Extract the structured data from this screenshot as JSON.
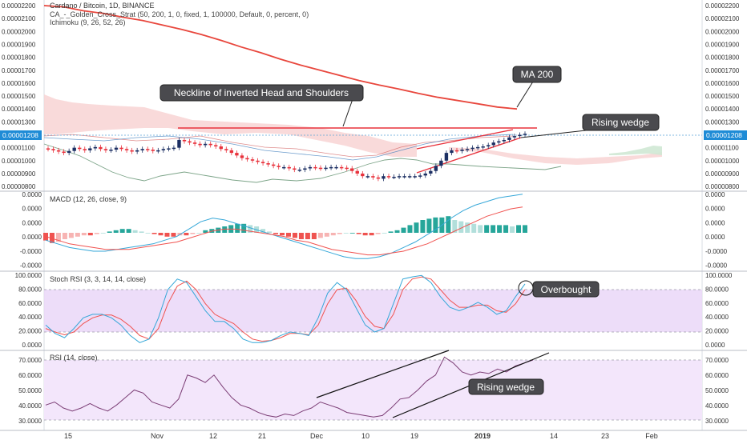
{
  "header": {
    "title": "Cardano / Bitcoin, 1D, BINANCE",
    "study1": "CA_-_Golden_Cross_Strat (50, 200, 1, 0, fixed, 1, 100000, Default, 0, percent, 0)",
    "study2": "Ichimoku (9, 26, 52, 26)"
  },
  "price_axis": {
    "ticks": [
      "0.00002200",
      "0.00002100",
      "0.00002000",
      "0.00001900",
      "0.00001800",
      "0.00001700",
      "0.00001600",
      "0.00001500",
      "0.00001400",
      "0.00001300",
      "0.00001100",
      "0.00001000",
      "0.00000900",
      "0.00000800"
    ],
    "current_price": "0.00001208"
  },
  "macd": {
    "title": "MACD (12, 26, close, 9)",
    "ticks": [
      "0.0000",
      "0.0000",
      "0.0000",
      "0.0000",
      "-0.0000",
      "-0.0000"
    ]
  },
  "stoch": {
    "title": "Stoch RSI (3, 3, 14, 14, close)",
    "ticks": [
      "100.0000",
      "80.0000",
      "60.0000",
      "40.0000",
      "20.0000",
      "0.0000"
    ]
  },
  "rsi": {
    "title": "RSI (14, close)",
    "ticks": [
      "70.0000",
      "60.0000",
      "50.0000",
      "40.0000",
      "30.0000"
    ]
  },
  "time_axis": {
    "labels": [
      "15",
      "Nov",
      "12",
      "21",
      "Dec",
      "10",
      "19",
      "2019",
      "14",
      "23",
      "Feb"
    ]
  },
  "annotations": {
    "neckline": "Neckline of inverted Head and Shoulders",
    "ma200": "MA 200",
    "rising_wedge_price": "Rising wedge",
    "overbought": "Overbought",
    "rising_wedge_rsi": "Rising wedge"
  },
  "colors": {
    "bull": "#1c2f63",
    "bear": "#e8323c",
    "ma200": "#e8463c",
    "trendline": "#e8323c",
    "stoch_k": "#35a7d8",
    "stoch_d": "#f0524f",
    "rsi_line": "#7b3d75",
    "band_fill": "#e9d4f7"
  },
  "chart_data": [
    {
      "type": "candlestick",
      "title": "Cardano / Bitcoin, 1D, BINANCE",
      "x_labels": [
        "15",
        "Nov",
        "12",
        "21",
        "Dec",
        "10",
        "19",
        "2019",
        "14",
        "23",
        "Feb"
      ],
      "close": [
        1090,
        1080,
        1070,
        1060,
        1075,
        1100,
        1090,
        1080,
        1095,
        1105,
        1090,
        1080,
        1085,
        1100,
        1090,
        1080,
        1070,
        1080,
        1090,
        1085,
        1075,
        1080,
        1090,
        1095,
        1100,
        1160,
        1150,
        1140,
        1130,
        1120,
        1130,
        1120,
        1110,
        1090,
        1080,
        1060,
        1040,
        1020,
        1010,
        1000,
        990,
        980,
        970,
        960,
        950,
        950,
        940,
        930,
        930,
        940,
        950,
        945,
        940,
        945,
        950,
        950,
        945,
        940,
        920,
        900,
        880,
        880,
        870,
        860,
        880,
        875,
        875,
        880,
        880,
        880,
        880,
        885,
        900,
        920,
        960,
        1000,
        1060,
        1080,
        1075,
        1085,
        1090,
        1100,
        1105,
        1110,
        1120,
        1140,
        1150,
        1160,
        1180,
        1190,
        1200,
        1208
      ],
      "ma200": [
        2200,
        2190,
        2160,
        2140,
        2110,
        2085,
        2050,
        2015,
        1975,
        1930,
        1880,
        1835,
        1785,
        1740,
        1700,
        1660,
        1620,
        1585,
        1555,
        1520,
        1490,
        1465,
        1440,
        1415,
        1400
      ],
      "ylim": [
        790,
        2240
      ],
      "notes": [
        "Neckline of inverted Head and Shoulders",
        "MA 200",
        "Rising wedge"
      ]
    },
    {
      "type": "bar",
      "title": "MACD (12, 26, close, 9)",
      "histogram": [
        -6,
        -8,
        -7,
        -5,
        -4,
        -3,
        -2,
        -2,
        -1,
        0,
        1,
        2,
        3,
        3,
        2,
        1,
        0,
        -1,
        -2,
        -3,
        -3,
        -2,
        -2,
        -1,
        0,
        2,
        3,
        4,
        5,
        6,
        7,
        7,
        6,
        5,
        3,
        1,
        -1,
        -2,
        -3,
        -4,
        -5,
        -5,
        -5,
        -4,
        -3,
        -2,
        -1,
        0,
        0,
        -1,
        -2,
        -2,
        -1,
        0,
        1,
        2,
        4,
        6,
        8,
        10,
        11,
        12,
        12,
        13,
        10,
        9,
        8,
        7,
        6,
        6,
        6,
        6,
        6,
        5,
        6,
        6
      ],
      "macd": [
        -4,
        -6,
        -8,
        -9,
        -10,
        -10,
        -9,
        -8,
        -7,
        -6,
        -4,
        -2,
        2,
        6,
        8,
        7,
        5,
        3,
        1,
        -1,
        -3,
        -5,
        -7,
        -9,
        -11,
        -13,
        -14,
        -14,
        -13,
        -11,
        -8,
        -5,
        -1,
        3,
        8,
        12,
        15,
        17,
        19,
        20,
        21
      ],
      "signal": [
        -2,
        -4,
        -6,
        -7,
        -8,
        -9,
        -9,
        -9,
        -8,
        -7,
        -6,
        -5,
        -3,
        -1,
        1,
        2,
        2,
        1,
        0,
        -1,
        -2,
        -4,
        -5,
        -7,
        -9,
        -10,
        -11,
        -12,
        -12,
        -11,
        -10,
        -8,
        -6,
        -3,
        0,
        3,
        6,
        9,
        11,
        13,
        14
      ]
    },
    {
      "type": "line",
      "title": "Stoch RSI (3, 3, 14, 14, close)",
      "ylim": [
        0,
        100
      ],
      "bands": [
        20,
        80
      ],
      "k": [
        30,
        18,
        12,
        25,
        40,
        45,
        45,
        40,
        30,
        15,
        5,
        10,
        40,
        80,
        95,
        90,
        70,
        50,
        35,
        35,
        25,
        10,
        5,
        5,
        8,
        15,
        20,
        18,
        15,
        40,
        75,
        90,
        80,
        55,
        30,
        20,
        25,
        60,
        95,
        98,
        100,
        90,
        70,
        55,
        50,
        55,
        62,
        55,
        45,
        50,
        70,
        88
      ],
      "d": [
        25,
        20,
        16,
        20,
        32,
        40,
        44,
        44,
        38,
        28,
        15,
        10,
        25,
        60,
        85,
        92,
        80,
        60,
        45,
        38,
        32,
        20,
        10,
        7,
        8,
        12,
        18,
        18,
        16,
        30,
        60,
        80,
        82,
        65,
        42,
        28,
        25,
        45,
        80,
        95,
        98,
        95,
        80,
        65,
        55,
        55,
        58,
        58,
        50,
        48,
        60,
        80
      ]
    },
    {
      "type": "line",
      "title": "RSI (14, close)",
      "ylim": [
        25,
        75
      ],
      "bands": [
        30,
        70
      ],
      "rsi": [
        40,
        42,
        38,
        36,
        38,
        41,
        38,
        36,
        40,
        45,
        50,
        48,
        42,
        40,
        38,
        44,
        60,
        58,
        55,
        60,
        52,
        45,
        40,
        38,
        35,
        33,
        32,
        34,
        33,
        36,
        38,
        42,
        40,
        38,
        35,
        34,
        33,
        32,
        33,
        38,
        44,
        45,
        50,
        56,
        60,
        72,
        68,
        62,
        60,
        62,
        61,
        64,
        62,
        66,
        68,
        70
      ],
      "notes": [
        "Rising wedge"
      ]
    }
  ]
}
